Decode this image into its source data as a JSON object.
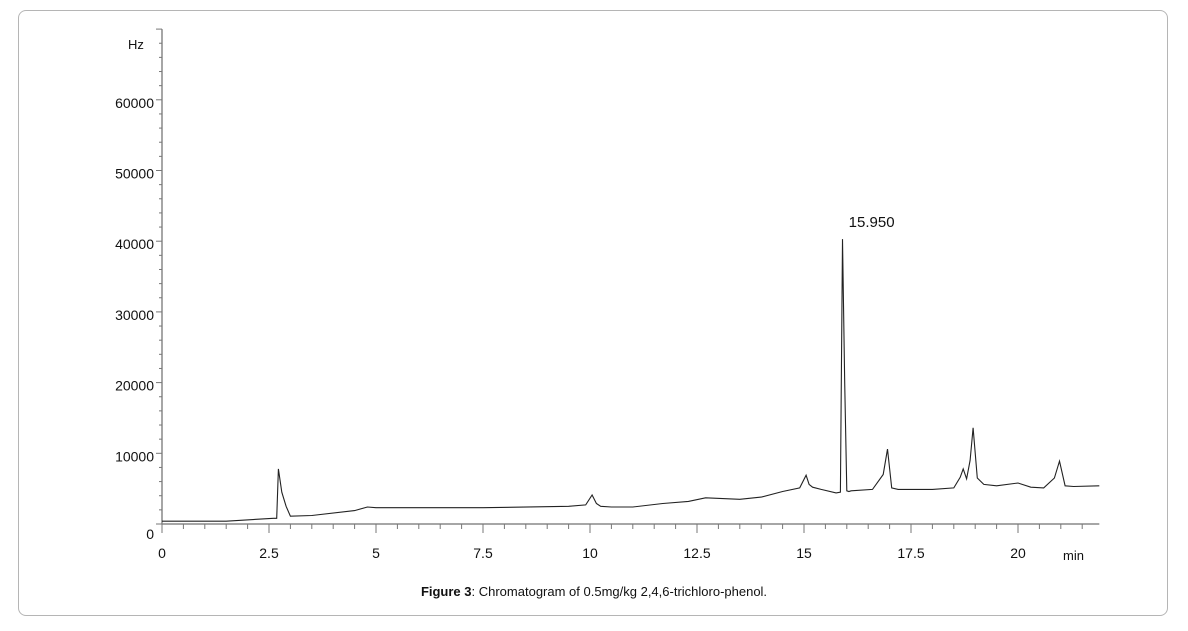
{
  "chart_data": {
    "type": "line",
    "title": "",
    "xlabel": "min",
    "ylabel": "Hz",
    "xlim": [
      0,
      21.9
    ],
    "ylim": [
      0,
      70000
    ],
    "grid": false,
    "x_ticks": [
      0,
      2.5,
      5,
      7.5,
      10,
      12.5,
      15,
      17.5,
      20
    ],
    "x_tick_labels": [
      "0",
      "2.5",
      "5",
      "7.5",
      "10",
      "12.5",
      "15",
      "17.5",
      "20"
    ],
    "y_ticks": [
      0,
      10000,
      20000,
      30000,
      40000,
      50000,
      60000
    ],
    "y_tick_labels": [
      "0",
      "10000",
      "20000",
      "30000",
      "40000",
      "50000",
      "60000"
    ],
    "annotations": [
      {
        "text": "15.950",
        "x": 15.95,
        "y": 40300
      }
    ],
    "series": [
      {
        "name": "chromatogram",
        "x": [
          0,
          1.5,
          2.6,
          2.68,
          2.72,
          2.8,
          2.9,
          3.0,
          3.5,
          4.5,
          4.8,
          5.0,
          7.5,
          9.5,
          9.9,
          10.05,
          10.15,
          10.25,
          10.5,
          11.0,
          11.7,
          12.3,
          12.7,
          13.5,
          14.0,
          14.5,
          14.9,
          15.05,
          15.12,
          15.2,
          15.4,
          15.75,
          15.85,
          15.9,
          15.95,
          16.0,
          16.05,
          16.1,
          16.6,
          16.85,
          16.95,
          17.05,
          17.2,
          18.0,
          18.5,
          18.65,
          18.72,
          18.8,
          18.88,
          18.95,
          19.05,
          19.2,
          19.5,
          20.0,
          20.3,
          20.6,
          20.85,
          20.97,
          21.1,
          21.3,
          21.9
        ],
        "y": [
          400,
          400,
          800,
          800,
          7800,
          4500,
          2500,
          1100,
          1200,
          1900,
          2400,
          2300,
          2300,
          2500,
          2700,
          4100,
          2900,
          2500,
          2400,
          2400,
          2900,
          3200,
          3700,
          3500,
          3800,
          4600,
          5100,
          6900,
          5600,
          5200,
          4900,
          4400,
          4500,
          40300,
          20000,
          4700,
          4600,
          4700,
          4900,
          7000,
          10600,
          5100,
          4900,
          4900,
          5100,
          6600,
          7800,
          6400,
          9000,
          13600,
          6500,
          5600,
          5400,
          5800,
          5200,
          5100,
          6500,
          8900,
          5400,
          5300,
          5400
        ]
      }
    ]
  },
  "caption": {
    "label": "Figure 3",
    "text": ": Chromatogram of 0.5mg/kg 2,4,6-trichloro-phenol."
  }
}
